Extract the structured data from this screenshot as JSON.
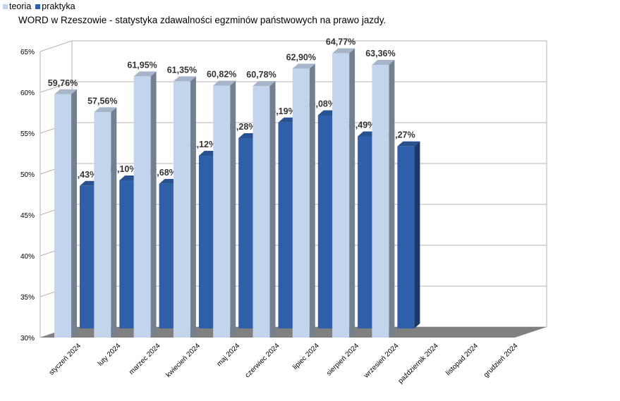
{
  "chart_data": {
    "type": "bar",
    "title": "WORD w Rzeszowie - statystyka zdawalności egzminów państwowych na prawo jazdy.",
    "categories": [
      "styczeń 2024",
      "luty 2024",
      "marzec 2024",
      "kwiecień 2024",
      "maj 2024",
      "czerwiec 2024",
      "lipiec 2024",
      "sierpień 2024",
      "wrzesień 2024",
      "październik 2024",
      "listopad 2024",
      "grudzień 2024"
    ],
    "series": [
      {
        "name": "teoria",
        "color": "#c3d5ec",
        "values": [
          59.76,
          57.56,
          61.95,
          61.35,
          60.82,
          60.78,
          62.9,
          64.77,
          63.36,
          null,
          null,
          null
        ],
        "labels": [
          "59,76%",
          "57,56%",
          "61,95%",
          "61,35%",
          "60,82%",
          "60,78%",
          "62,90%",
          "64,77%",
          "63,36%",
          "",
          "",
          ""
        ]
      },
      {
        "name": "praktyka",
        "color": "#2f5fa8",
        "values": [
          47.43,
          48.1,
          47.68,
          51.12,
          53.28,
          55.19,
          56.08,
          53.49,
          52.27,
          null,
          null,
          null
        ],
        "labels": [
          "47,43%",
          "48,10%",
          "47,68%",
          "51,12%",
          "53,28%",
          "55,19%",
          "56,08%",
          "53,49%",
          "52,27%",
          "",
          "",
          ""
        ]
      }
    ],
    "ylim": [
      30,
      65
    ],
    "yticks": [
      "30%",
      "35%",
      "40%",
      "45%",
      "50%",
      "55%",
      "60%",
      "65%"
    ],
    "ytick_values": [
      30,
      35,
      40,
      45,
      50,
      55,
      60,
      65
    ],
    "grid": true,
    "legend": "top-left",
    "style": "3d-bar"
  }
}
